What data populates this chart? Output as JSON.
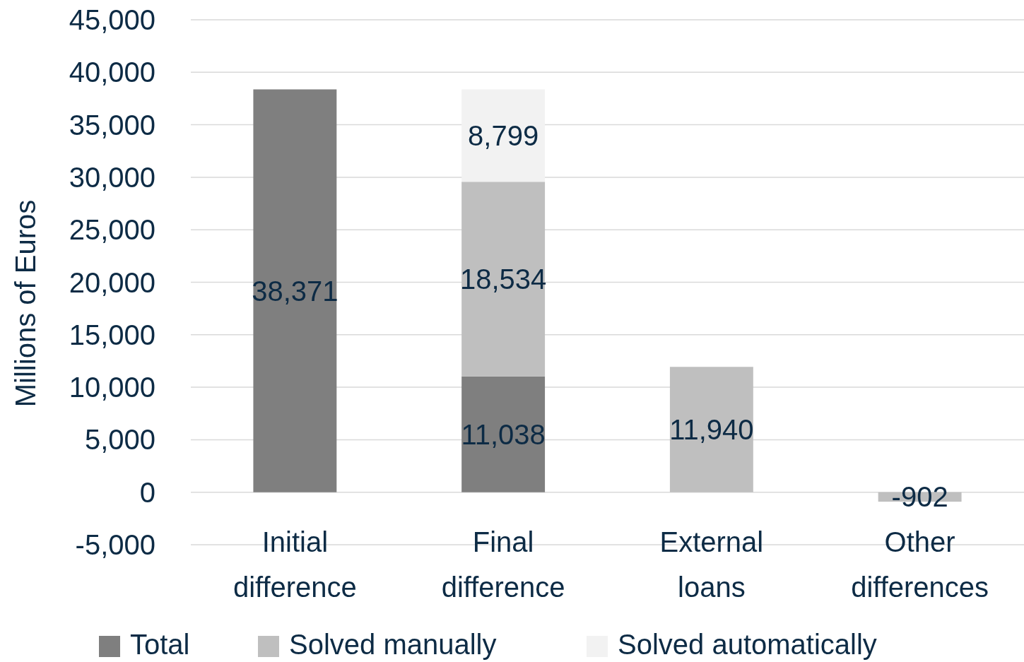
{
  "chart_data": {
    "type": "bar",
    "stacked": true,
    "ylabel": "Millions of Euros",
    "categories": [
      "Initial difference",
      "Final difference",
      "External loans",
      "Other differences"
    ],
    "series": [
      {
        "name": "Total",
        "color": "#7f7f7f",
        "values": [
          38371,
          11038,
          null,
          null
        ],
        "value_labels": [
          "38,371",
          "11,038",
          null,
          null
        ]
      },
      {
        "name": "Solved manually",
        "color": "#bfbfbf",
        "values": [
          null,
          18534,
          11940,
          -902
        ],
        "value_labels": [
          null,
          "18,534",
          "11,940",
          "-902"
        ]
      },
      {
        "name": "Solved automatically",
        "color": "#f2f2f2",
        "values": [
          null,
          8799,
          null,
          null
        ],
        "value_labels": [
          null,
          "8,799",
          null,
          null
        ]
      }
    ],
    "ylim": [
      -5000,
      45000
    ],
    "yticks": [
      {
        "value": -5000,
        "label": "-5,000"
      },
      {
        "value": 0,
        "label": "0"
      },
      {
        "value": 5000,
        "label": "5,000"
      },
      {
        "value": 10000,
        "label": "10,000"
      },
      {
        "value": 15000,
        "label": "15,000"
      },
      {
        "value": 20000,
        "label": "20,000"
      },
      {
        "value": 25000,
        "label": "25,000"
      },
      {
        "value": 30000,
        "label": "30,000"
      },
      {
        "value": 35000,
        "label": "35,000"
      },
      {
        "value": 40000,
        "label": "40,000"
      },
      {
        "value": 45000,
        "label": "45,000"
      }
    ],
    "grid": "y",
    "legend": "bottom"
  }
}
